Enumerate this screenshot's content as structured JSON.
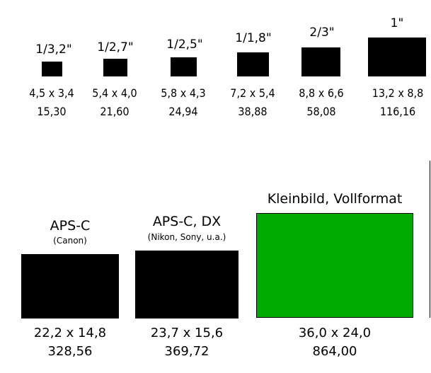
{
  "small_sensors": [
    {
      "name": "1/3,2\"",
      "dimensions": "4,5 x 3,4",
      "area": "15,30",
      "color": "#000000"
    },
    {
      "name": "1/2,7\"",
      "dimensions": "5,4 x 4,0",
      "area": "21,60",
      "color": "#000000"
    },
    {
      "name": "1/2,5\"",
      "dimensions": "5,8 x 4,3",
      "area": "24,94",
      "color": "#000000"
    },
    {
      "name": "1/1,8\"",
      "dimensions": "7,2 x 5,4",
      "area": "38,88",
      "color": "#000000"
    },
    {
      "name": "2/3\"",
      "dimensions": "8,8 x 6,6",
      "area": "58,08",
      "color": "#000000"
    },
    {
      "name": "1\"",
      "dimensions": "13,2 x 8,8",
      "area": "116,16",
      "color": "#000000"
    }
  ],
  "large_sensors": [
    {
      "name": "APS-C",
      "subtitle": "(Canon)",
      "dimensions": "22,2 x 14,8",
      "area": "328,56",
      "color": "#000000"
    },
    {
      "name": "APS-C, DX",
      "subtitle": "(Nikon, Sony, u.a.)",
      "dimensions": "23,7 x 15,6",
      "area": "369,72",
      "color": "#000000"
    },
    {
      "name": "Kleinbild, Vollformat",
      "subtitle": "",
      "dimensions": "36,0 x 24,0",
      "area": "864,00",
      "color": "#00aa00"
    }
  ]
}
